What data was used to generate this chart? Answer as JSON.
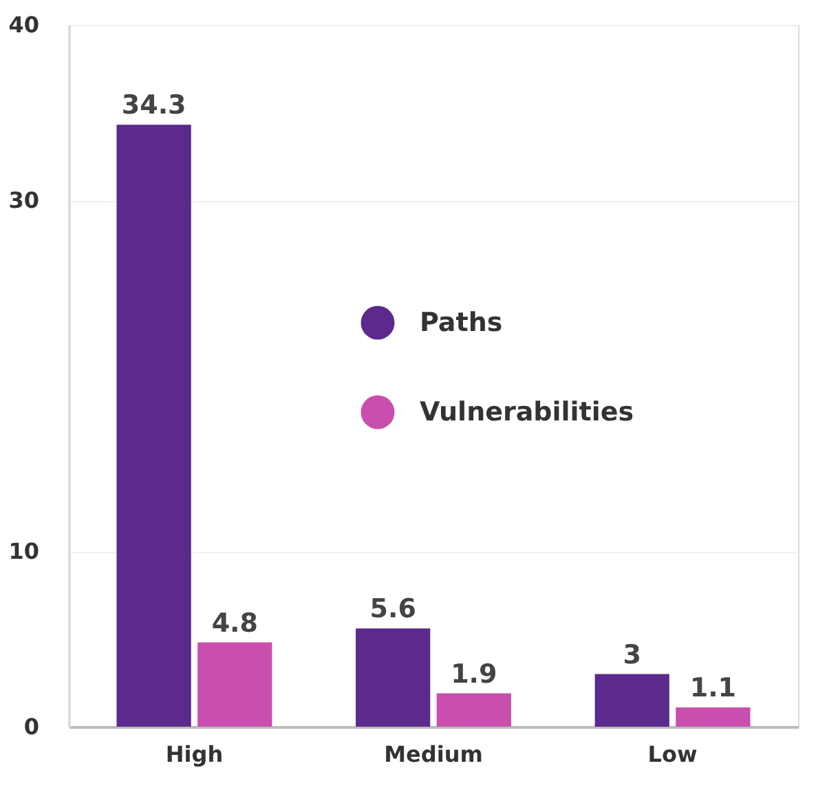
{
  "chart_data": {
    "type": "bar",
    "categories": [
      "High",
      "Medium",
      "Low"
    ],
    "series": [
      {
        "name": "Paths",
        "color": "#5b2a8c",
        "values": [
          34.3,
          5.6,
          3
        ]
      },
      {
        "name": "Vulnerabilities",
        "color": "#c84fad",
        "values": [
          4.8,
          1.9,
          1.1
        ]
      }
    ],
    "ylim": [
      0,
      40
    ],
    "yticks": [
      0,
      10,
      30,
      40
    ],
    "grid": "y",
    "legend": "right",
    "data_labels": true
  }
}
